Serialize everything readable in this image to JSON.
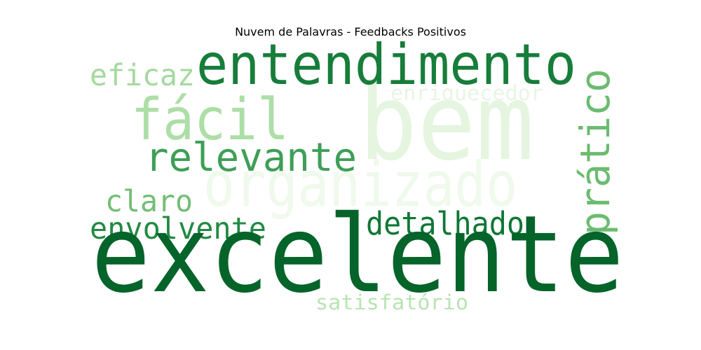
{
  "title": "Nuvem de Palavras - Feedbacks Positivos",
  "words": [
    {
      "text": "bem",
      "color": "#e5f5e0"
    },
    {
      "text": "organizado",
      "color": "#eff9ec"
    },
    {
      "text": "enriquecedor",
      "color": "#e8f5e4"
    },
    {
      "text": "fácil",
      "color": "#addea7"
    },
    {
      "text": "eficaz",
      "color": "#a5d99f"
    },
    {
      "text": "entendimento",
      "color": "#177d3a"
    },
    {
      "text": "relevante",
      "color": "#3e9f57"
    },
    {
      "text": "prático",
      "color": "#6cbb70"
    },
    {
      "text": "claro",
      "color": "#72be74"
    },
    {
      "text": "envolvente",
      "color": "#218a43"
    },
    {
      "text": "detalhado",
      "color": "#0e7735"
    },
    {
      "text": "excelente",
      "color": "#056429"
    },
    {
      "text": "satisfatório",
      "color": "#b9e3b3"
    }
  ]
}
